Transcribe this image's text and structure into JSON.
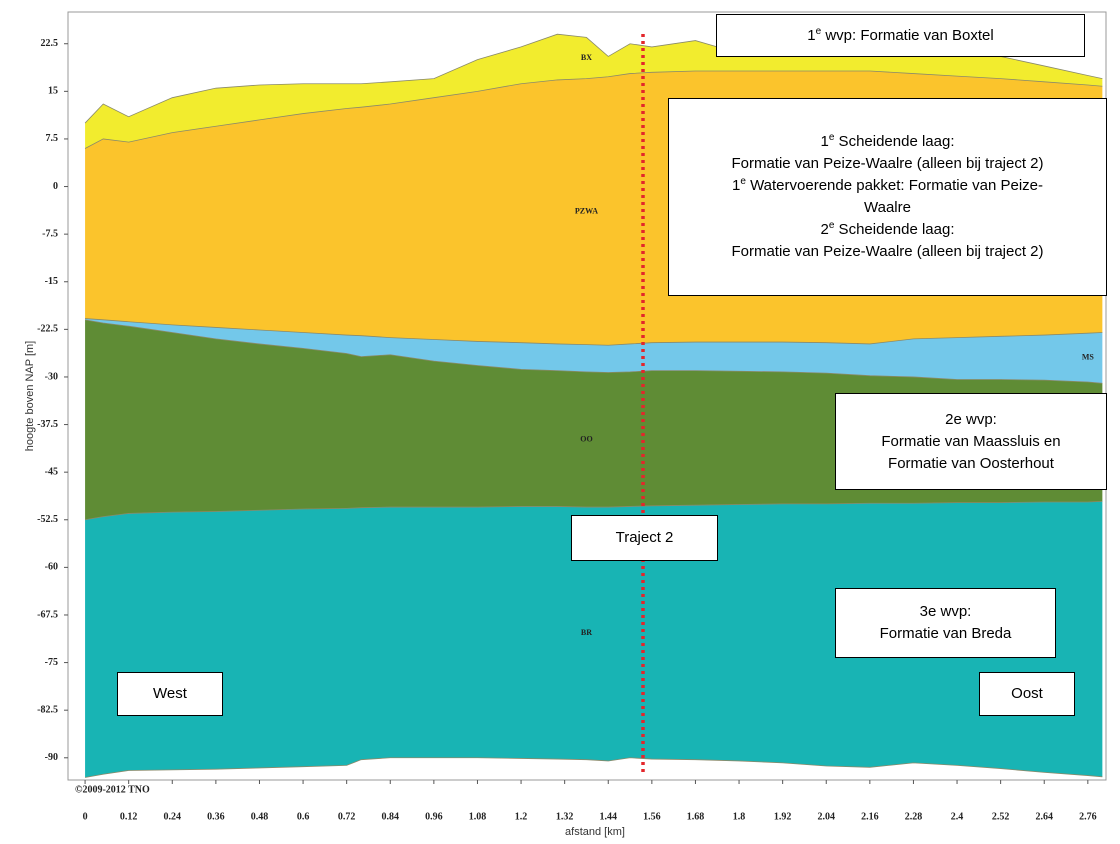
{
  "chart_data": {
    "type": "cross-section",
    "xlabel": "afstand [km]",
    "ylabel": "hoogte boven NAP [m]",
    "copyright": "©2009-2012 TNO",
    "xlim": [
      -0.047,
      2.81
    ],
    "ylim": [
      -93.5,
      27.5
    ],
    "xticks": [
      0,
      0.12,
      0.24,
      0.36,
      0.48,
      0.6,
      0.72,
      0.84,
      0.96,
      1.08,
      1.2,
      1.32,
      1.44,
      1.56,
      1.68,
      1.8,
      1.92,
      2.04,
      2.16,
      2.28,
      2.4,
      2.52,
      2.64,
      2.76
    ],
    "yticks": [
      22.5,
      15,
      7.5,
      0,
      -7.5,
      -15,
      -22.5,
      -30,
      -37.5,
      -45,
      -52.5,
      -60,
      -67.5,
      -75,
      -82.5,
      -90
    ],
    "x": [
      0,
      0.05,
      0.12,
      0.24,
      0.36,
      0.48,
      0.6,
      0.72,
      0.76,
      0.84,
      0.96,
      1.08,
      1.2,
      1.3,
      1.38,
      1.44,
      1.5,
      1.56,
      1.68,
      1.8,
      1.92,
      2.04,
      2.16,
      2.28,
      2.4,
      2.52,
      2.64,
      2.76,
      2.8
    ],
    "boundaries": [
      [
        10,
        13,
        11,
        14,
        15.5,
        16,
        16.2,
        16.2,
        16.2,
        16.5,
        17,
        20,
        22,
        24,
        23.5,
        20.5,
        22.5,
        22,
        23,
        21,
        22.5,
        22,
        22.5,
        22,
        21.5,
        20.5,
        19,
        17.5,
        17
      ],
      [
        6,
        7.5,
        7,
        8.5,
        9.5,
        10.5,
        11.5,
        12.3,
        12.5,
        13,
        14,
        15,
        16.2,
        16.8,
        17,
        17.3,
        17.8,
        18,
        18.2,
        18.2,
        18.2,
        18.2,
        18.2,
        17.8,
        17.4,
        17,
        16.5,
        16,
        15.8
      ],
      [
        -20.8,
        -21,
        -21.3,
        -21.8,
        -22.2,
        -22.6,
        -23,
        -23.4,
        -23.5,
        -23.8,
        -24.1,
        -24.4,
        -24.6,
        -24.8,
        -24.9,
        -25,
        -24.8,
        -24.6,
        -24.5,
        -24.5,
        -24.5,
        -24.6,
        -24.8,
        -24,
        -23.8,
        -23.6,
        -23.4,
        -23.1,
        -23
      ],
      [
        -21,
        -21.5,
        -22,
        -23,
        -24,
        -24.8,
        -25.5,
        -26.3,
        -26.8,
        -26.5,
        -27.5,
        -28.2,
        -28.8,
        -29,
        -29.2,
        -29.3,
        -29.2,
        -29,
        -29,
        -29.1,
        -29.2,
        -29.4,
        -29.8,
        -30,
        -30.4,
        -30.4,
        -30.5,
        -30.8,
        -31
      ],
      [
        -52.5,
        -52,
        -51.5,
        -51.3,
        -51.2,
        -51,
        -50.8,
        -50.7,
        -50.6,
        -50.5,
        -50.5,
        -50.5,
        -50.4,
        -50.4,
        -50.5,
        -50.5,
        -50.4,
        -50.3,
        -50.2,
        -50.1,
        -50,
        -50,
        -49.9,
        -49.9,
        -49.8,
        -49.8,
        -49.7,
        -49.7,
        -49.6
      ],
      [
        -93.1,
        -92.6,
        -92,
        -91.9,
        -91.8,
        -91.6,
        -91.4,
        -91.2,
        -90.3,
        -90,
        -90,
        -90,
        -90.1,
        -90.2,
        -90.3,
        -90.5,
        -90,
        -90.2,
        -90.3,
        -90.5,
        -90.8,
        -91.3,
        -91.5,
        -90.8,
        -91.2,
        -91.7,
        -92.3,
        -92.8,
        -93
      ]
    ],
    "layers": [
      {
        "label": "BX",
        "color": "#f2ec2e"
      },
      {
        "label": "PZWA",
        "color": "#fbc42c"
      },
      {
        "label": "MS",
        "color": "#73c8ea"
      },
      {
        "label": "OO",
        "color": "#5f8c35"
      },
      {
        "label": "BR",
        "color": "#18b4b4"
      }
    ],
    "annotations": [
      {
        "lines": [
          {
            "pre": "1",
            "sup": "e",
            "text": " wvp: Formatie van Boxtel"
          }
        ]
      },
      {
        "lines": [
          {
            "pre": "1",
            "sup": "e",
            "text": " Scheidende laag:"
          },
          "Formatie van Peize-Waalre (alleen bij traject 2)",
          {
            "pre": "1",
            "sup": "e",
            "text": " Watervoerende pakket: Formatie van Peize-"
          },
          "Waalre",
          {
            "pre": "2",
            "sup": "e",
            "text": " Scheidende laag:"
          },
          "Formatie van Peize-Waalre (alleen bij traject 2)"
        ]
      },
      {
        "lines": [
          "2e wvp:",
          "Formatie van Maassluis  en",
          "Formatie van Oosterhout"
        ]
      },
      {
        "lines": [
          "Traject 2"
        ]
      },
      {
        "lines": [
          "3e wvp:",
          "Formatie van Breda"
        ]
      },
      {
        "lines": [
          "West"
        ]
      },
      {
        "lines": [
          "Oost"
        ]
      }
    ]
  }
}
